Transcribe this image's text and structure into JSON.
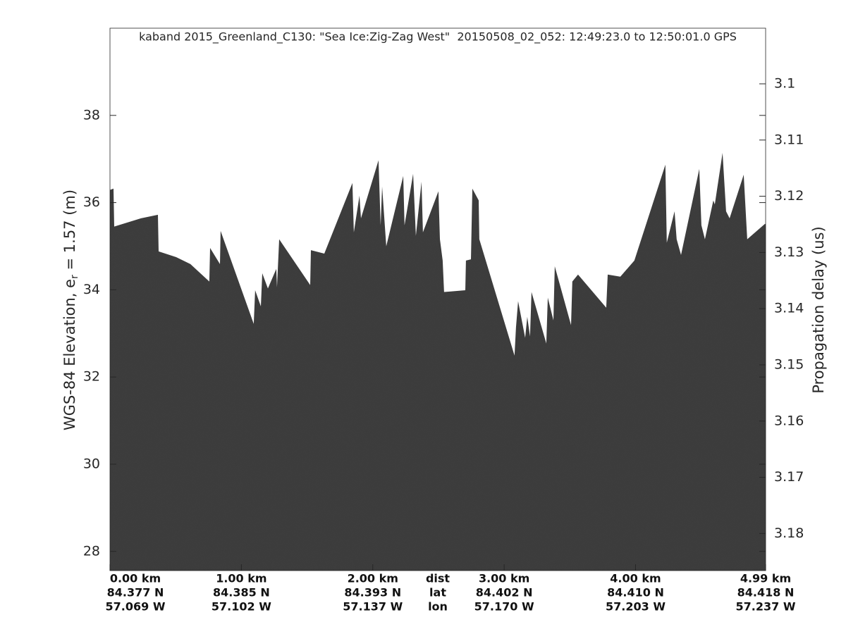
{
  "chart_data": {
    "type": "echogram",
    "title": "kaband 2015_Greenland_C130: \"Sea Ice:Zig-Zag West\"  20150508_02_052: 12:49:23.0 to 12:50:01.0 GPS",
    "ylabel_parts": [
      "WGS-84 Elevation, e",
      "r",
      " = 1.57 (m)"
    ],
    "y2label": "Propagation delay (us)",
    "color": "#3c3c3c",
    "xlim": [
      0,
      4.99
    ],
    "ylim": [
      27.56,
      40.0
    ],
    "y2lim": [
      3.1866,
      3.0901
    ],
    "yticks": [
      28,
      30,
      32,
      34,
      36,
      38
    ],
    "y2ticks": [
      3.1,
      3.11,
      3.12,
      3.13,
      3.14,
      3.15,
      3.16,
      3.17,
      3.18
    ],
    "xticks": [
      {
        "value": 0,
        "label": "0.00 km"
      },
      {
        "value": 1,
        "label": "1.00 km"
      },
      {
        "value": 2,
        "label": "2.00 km"
      },
      {
        "value": 3,
        "label": "3.00 km"
      },
      {
        "value": 4,
        "label": "4.00 km"
      },
      {
        "value": 4.99,
        "label": "4.99 km"
      }
    ],
    "lat_labels": [
      "84.377 N",
      "84.385 N",
      "84.393 N",
      "84.402 N",
      "84.410 N",
      "84.418 N"
    ],
    "lon_labels": [
      "57.069 W",
      "57.102 W",
      "57.137 W",
      "57.170 W",
      "57.203 W",
      "57.237 W"
    ],
    "row_labels": [
      "dist",
      "lat",
      "lon"
    ],
    "x": [
      0,
      0.027,
      0.032,
      0.236,
      0.365,
      0.37,
      0.504,
      0.612,
      0.756,
      0.762,
      0.837,
      0.842,
      1.094,
      1.105,
      1.148,
      1.159,
      1.202,
      1.266,
      1.271,
      1.288,
      1.524,
      1.529,
      1.631,
      1.845,
      1.856,
      1.899,
      1.91,
      2.044,
      2.06,
      2.071,
      2.103,
      2.232,
      2.242,
      2.307,
      2.328,
      2.371,
      2.382,
      2.5,
      2.511,
      2.532,
      2.543,
      2.704,
      2.709,
      2.747,
      2.758,
      2.806,
      2.811,
      3.079,
      3.09,
      3.106,
      3.16,
      3.176,
      3.197,
      3.208,
      3.321,
      3.332,
      3.375,
      3.385,
      3.509,
      3.519,
      3.562,
      3.777,
      3.788,
      3.884,
      3.991,
      4.227,
      4.238,
      4.297,
      4.313,
      4.346,
      4.485,
      4.501,
      4.528,
      4.592,
      4.603,
      4.662,
      4.689,
      4.716,
      4.823,
      4.85,
      4.984
    ],
    "values": [
      36.29,
      36.32,
      35.45,
      35.64,
      35.72,
      34.88,
      34.75,
      34.59,
      34.19,
      34.96,
      34.59,
      35.35,
      33.22,
      33.99,
      33.62,
      34.38,
      34.03,
      34.48,
      34.06,
      35.16,
      34.11,
      34.91,
      34.83,
      36.45,
      35.32,
      36.16,
      35.64,
      36.97,
      35.48,
      36.37,
      35.0,
      36.61,
      35.48,
      36.66,
      35.24,
      36.48,
      35.32,
      36.26,
      35.16,
      34.67,
      33.95,
      33.99,
      34.67,
      34.7,
      36.32,
      36.05,
      35.16,
      32.49,
      33.14,
      33.74,
      32.9,
      33.38,
      32.93,
      33.95,
      32.77,
      33.82,
      33.3,
      34.54,
      33.19,
      34.19,
      34.35,
      33.59,
      34.35,
      34.3,
      34.67,
      36.87,
      35.08,
      35.8,
      35.16,
      34.8,
      36.77,
      35.48,
      35.16,
      36.05,
      35.96,
      37.14,
      35.8,
      35.64,
      36.64,
      35.16,
      35.51
    ]
  }
}
